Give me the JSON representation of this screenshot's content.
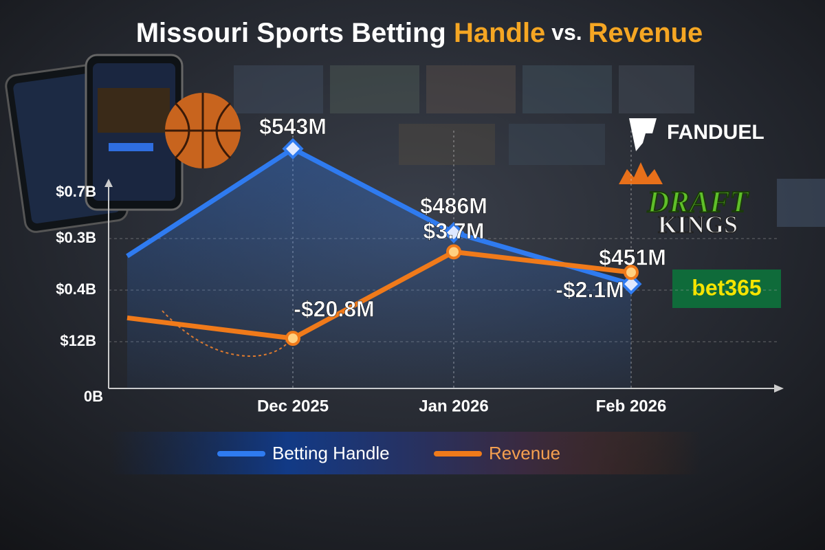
{
  "chart_data": {
    "type": "line",
    "title_parts": [
      "Missouri Sports Betting ",
      "Handle",
      " vs. ",
      "Revenue"
    ],
    "categories": [
      null,
      "Dec 2025",
      "Jan 2026",
      "Feb 2026"
    ],
    "y_axis_labels": [
      "$0.7B",
      "$0.3B",
      "$0.4B",
      "$12B",
      "0B"
    ],
    "ylim": [
      380,
      560
    ],
    "y2lim": [
      -35,
      40
    ],
    "series": [
      {
        "name": "Betting Handle",
        "color": "#2f7bf0",
        "values": [
          470,
          543,
          486,
          451
        ],
        "value_labels": [
          null,
          "$543M",
          "$486M",
          "$451M"
        ]
      },
      {
        "name": "Revenue",
        "color": "#f07a1a",
        "axis": "y2",
        "values": [
          -15,
          -20.8,
          3.7,
          -2.1
        ],
        "value_labels": [
          null,
          "-$20.8M",
          "$3.7M",
          "-$2.1M"
        ]
      }
    ],
    "logos": [
      "FANDUEL",
      "DRAFT",
      "KINGS",
      "bet365"
    ]
  }
}
